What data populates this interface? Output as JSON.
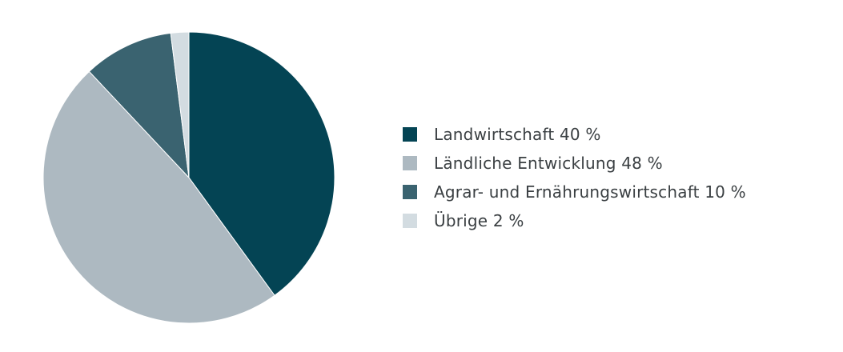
{
  "chart_data": {
    "type": "pie",
    "slices": [
      {
        "label": "Landwirtschaft",
        "value": 40,
        "color": "#044454"
      },
      {
        "label": "Ländliche Entwicklung",
        "value": 48,
        "color": "#adb9c1"
      },
      {
        "label": "Agrar- und Ernährungswirtschaft",
        "value": 10,
        "color": "#3a6370"
      },
      {
        "label": "Übrige",
        "value": 2,
        "color": "#d3dce1"
      }
    ],
    "legend_entries": [
      "Landwirtschaft 40 %",
      "Ländliche Entwicklung 48 %",
      "Agrar- und Ernährungswirtschaft 10 %",
      "Übrige 2 %"
    ],
    "start": "top",
    "direction": "clockwise",
    "legend_position": "right"
  }
}
